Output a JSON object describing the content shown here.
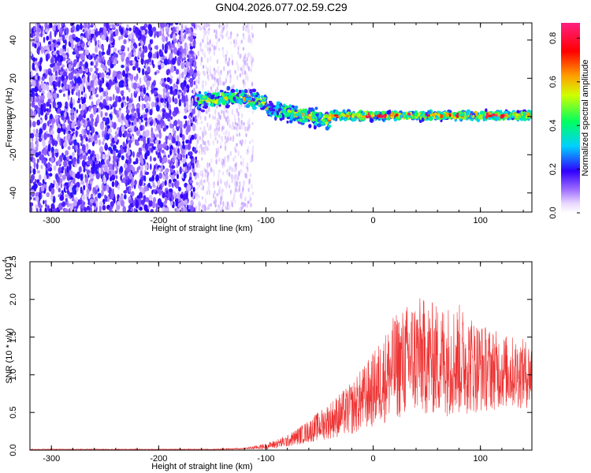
{
  "title": "GN04.2026.077.02.59.C29",
  "chart_data": [
    {
      "type": "heatmap",
      "xlabel": "Height of straight line (km)",
      "ylabel": "Frequency (Hz)",
      "xlim": [
        -320,
        148
      ],
      "ylim": [
        -50,
        49
      ],
      "xticks": [
        -300,
        -200,
        -100,
        0,
        100
      ],
      "yticks": [
        -40,
        -20,
        0,
        20,
        40
      ],
      "xtick_labels": [
        "-300",
        "-200",
        "-100",
        "0",
        "100"
      ],
      "ytick_labels": [
        "-40",
        "-20",
        "0",
        "20",
        "40"
      ],
      "colorbar": {
        "label": "Normalized spectral amplitude",
        "range": [
          0.0,
          0.87
        ],
        "ticks": [
          0.0,
          0.2,
          0.4,
          0.6,
          0.8
        ],
        "tick_labels": [
          "0.0",
          "0.2",
          "0.4",
          "0.6",
          "0.8"
        ],
        "colormap": "hsv-rainbow"
      },
      "features": [
        {
          "x_range": [
            -320,
            -165
          ],
          "description_free": true,
          "amplitude": 0.12,
          "f_range": [
            -50,
            49
          ]
        },
        {
          "x_range": [
            -165,
            -112
          ],
          "amplitude": 0.04,
          "f_range": [
            -50,
            49
          ]
        },
        {
          "x_range": [
            -165,
            148
          ],
          "amplitude": 0.8,
          "f_center_start": 10,
          "f_center_end": 0
        }
      ],
      "grid": false
    },
    {
      "type": "line",
      "xlabel": "Height of straight line (km)",
      "ylabel": "SNR (10 * v/v)",
      "exponent_label": "(x10",
      "exponent_power": "4",
      "exponent_close": ")",
      "xlim": [
        -320,
        148
      ],
      "ylim": [
        0,
        2.5
      ],
      "xticks": [
        -300,
        -200,
        -100,
        0,
        100
      ],
      "yticks": [
        0.0,
        0.5,
        1.0,
        1.5,
        2.0,
        2.5
      ],
      "xtick_labels": [
        "-300",
        "-200",
        "-100",
        "0",
        "100"
      ],
      "ytick_labels": [
        "0.0",
        "0.5",
        "1.0",
        "1.5",
        "2.0",
        "2.5"
      ],
      "color": "#ee3333",
      "envelope": {
        "x": [
          -320,
          -150,
          -120,
          -100,
          -80,
          -60,
          -40,
          -20,
          0,
          10,
          20,
          40,
          60,
          80,
          100,
          120,
          148
        ],
        "mean": [
          0.01,
          0.01,
          0.02,
          0.05,
          0.12,
          0.25,
          0.4,
          0.55,
          0.8,
          0.95,
          1.1,
          1.25,
          1.2,
          1.2,
          1.1,
          1.05,
          1.0
        ],
        "amplitude": [
          0.005,
          0.005,
          0.01,
          0.04,
          0.08,
          0.15,
          0.25,
          0.35,
          0.5,
          0.6,
          0.7,
          0.8,
          0.75,
          0.75,
          0.6,
          0.5,
          0.45
        ]
      },
      "grid": false
    }
  ]
}
